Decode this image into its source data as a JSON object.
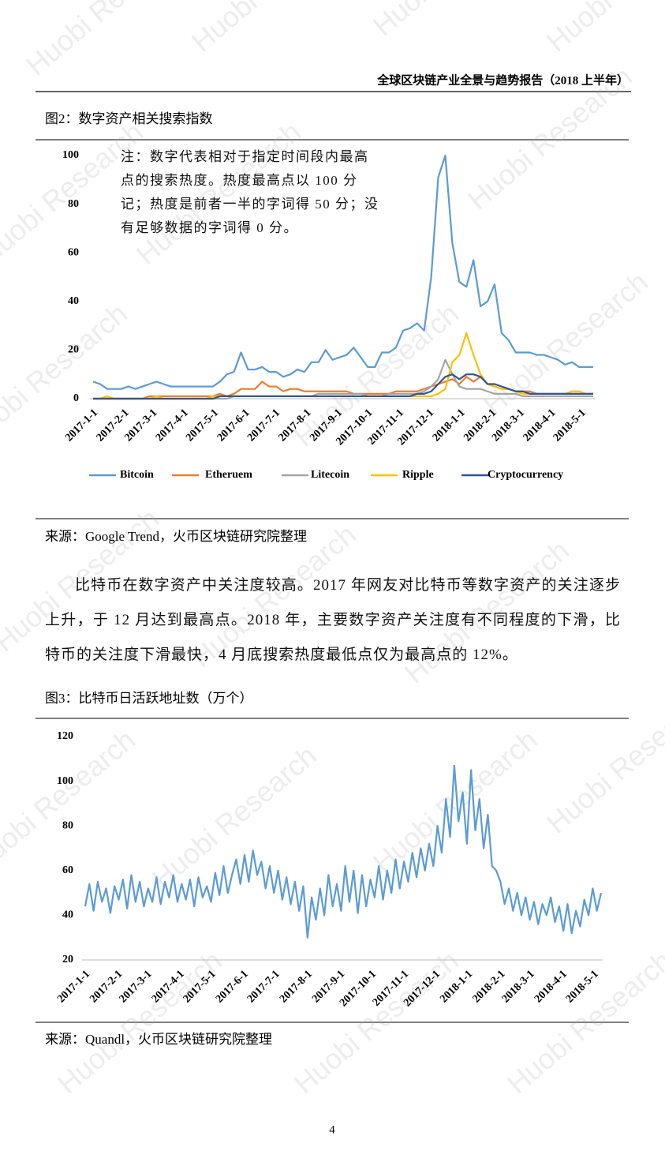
{
  "header": "全球区块链产业全景与趋势报告（2018 上半年）",
  "watermark": "Huobi Research",
  "paragraph": "比特币在数字资产中关注度较高。2017 年网友对比特币等数字资产的关注逐步上升，于 12 月达到最高点。2018 年，主要数字资产关注度有不同程度的下滑，比特币的关注度下滑最快，4 月底搜索热度最低点仅为最高点的 12%。",
  "page_number": "4",
  "chart_data": [
    {
      "type": "line",
      "title": "图2：数字资产相关搜索指数",
      "annotation": "注：数字代表相对于指定时间段内最高点的搜索热度。热度最高点以 100 分记；热度是前者一半的字词得 50 分；没有足够数据的字词得 0 分。",
      "source": "来源：Google Trend，火币区块链研究院整理",
      "x": [
        "2017-1-1",
        "2017-1-8",
        "2017-1-15",
        "2017-1-22",
        "2017-1-29",
        "2017-2-5",
        "2017-2-12",
        "2017-2-19",
        "2017-2-26",
        "2017-3-5",
        "2017-3-12",
        "2017-3-19",
        "2017-3-26",
        "2017-4-2",
        "2017-4-9",
        "2017-4-16",
        "2017-4-23",
        "2017-4-30",
        "2017-5-7",
        "2017-5-14",
        "2017-5-21",
        "2017-5-28",
        "2017-6-4",
        "2017-6-11",
        "2017-6-18",
        "2017-6-25",
        "2017-7-2",
        "2017-7-9",
        "2017-7-16",
        "2017-7-23",
        "2017-7-30",
        "2017-8-6",
        "2017-8-13",
        "2017-8-20",
        "2017-8-27",
        "2017-9-3",
        "2017-9-10",
        "2017-9-17",
        "2017-9-24",
        "2017-10-1",
        "2017-10-8",
        "2017-10-15",
        "2017-10-22",
        "2017-10-29",
        "2017-11-5",
        "2017-11-12",
        "2017-11-19",
        "2017-11-26",
        "2017-12-3",
        "2017-12-10",
        "2017-12-17",
        "2017-12-24",
        "2017-12-31",
        "2018-1-7",
        "2018-1-14",
        "2018-1-21",
        "2018-1-28",
        "2018-2-4",
        "2018-2-11",
        "2018-2-18",
        "2018-2-25",
        "2018-3-4",
        "2018-3-11",
        "2018-3-18",
        "2018-3-25",
        "2018-4-1",
        "2018-4-8",
        "2018-4-15",
        "2018-4-22",
        "2018-4-29",
        "2018-5-6",
        "2018-5-13"
      ],
      "xlim": [
        "2017-1-1",
        "2018-5-13"
      ],
      "xticks": [
        "2017-1-1",
        "2017-2-1",
        "2017-3-1",
        "2017-4-1",
        "2017-5-1",
        "2017-6-1",
        "2017-7-1",
        "2017-8-1",
        "2017-9-1",
        "2017-10-1",
        "2017-11-1",
        "2017-12-1",
        "2018-1-1",
        "2018-2-1",
        "2018-3-1",
        "2018-4-1",
        "2018-5-1"
      ],
      "ylim": [
        0,
        100
      ],
      "yticks": [
        0,
        20,
        40,
        60,
        80,
        100
      ],
      "grid": false,
      "series": [
        {
          "name": "Bitcoin",
          "color": "#5b9bd5",
          "values": [
            7,
            6,
            4,
            4,
            4,
            5,
            4,
            5,
            6,
            7,
            6,
            5,
            5,
            5,
            5,
            5,
            5,
            5,
            7,
            10,
            11,
            19,
            12,
            12,
            13,
            11,
            11,
            9,
            10,
            12,
            11,
            15,
            15,
            20,
            16,
            17,
            18,
            21,
            17,
            13,
            13,
            19,
            19,
            21,
            28,
            29,
            31,
            28,
            50,
            91,
            100,
            64,
            48,
            46,
            57,
            38,
            40,
            47,
            27,
            24,
            19,
            19,
            19,
            18,
            18,
            17,
            16,
            14,
            15,
            13,
            13,
            13
          ]
        },
        {
          "name": "Etheruem",
          "color": "#ed7d31",
          "values": [
            0,
            0,
            0,
            0,
            0,
            0,
            0,
            0,
            1,
            1,
            1,
            1,
            1,
            1,
            1,
            1,
            1,
            1,
            2,
            1,
            2,
            4,
            4,
            4,
            7,
            5,
            5,
            3,
            4,
            4,
            3,
            3,
            3,
            3,
            3,
            3,
            3,
            2,
            2,
            2,
            2,
            2,
            2,
            3,
            3,
            3,
            3,
            4,
            5,
            6,
            7,
            8,
            6,
            9,
            7,
            9,
            6,
            5,
            4,
            4,
            3,
            3,
            3,
            2,
            2,
            2,
            2,
            2,
            2,
            2,
            2,
            2
          ]
        },
        {
          "name": "Litecoin",
          "color": "#a5a5a5",
          "values": [
            0,
            0,
            0,
            0,
            0,
            0,
            0,
            0,
            0,
            0,
            0,
            0,
            0,
            0,
            0,
            0,
            0,
            0,
            0,
            0,
            1,
            1,
            1,
            1,
            1,
            1,
            1,
            1,
            1,
            1,
            1,
            1,
            2,
            2,
            2,
            2,
            2,
            2,
            2,
            1,
            1,
            1,
            2,
            2,
            2,
            2,
            2,
            3,
            5,
            8,
            16,
            10,
            5,
            4,
            4,
            4,
            3,
            2,
            2,
            2,
            2,
            1,
            1,
            1,
            1,
            1,
            1,
            1,
            1,
            1,
            1,
            1
          ]
        },
        {
          "name": "Ripple",
          "color": "#ffc000",
          "values": [
            0,
            0,
            1,
            0,
            0,
            0,
            0,
            0,
            0,
            1,
            0,
            0,
            0,
            0,
            0,
            0,
            0,
            1,
            1,
            1,
            1,
            1,
            1,
            1,
            1,
            1,
            1,
            1,
            1,
            1,
            1,
            1,
            1,
            1,
            1,
            1,
            1,
            1,
            1,
            1,
            1,
            1,
            1,
            1,
            1,
            1,
            1,
            1,
            1,
            2,
            4,
            15,
            18,
            27,
            18,
            10,
            6,
            5,
            4,
            4,
            3,
            2,
            2,
            2,
            2,
            2,
            2,
            2,
            3,
            3,
            2,
            2
          ]
        },
        {
          "name": "Cryptocurrency",
          "color": "#2f5597",
          "values": [
            0,
            0,
            0,
            0,
            0,
            0,
            0,
            0,
            0,
            0,
            0,
            0,
            0,
            0,
            0,
            0,
            0,
            0,
            1,
            1,
            1,
            1,
            1,
            1,
            1,
            1,
            1,
            1,
            1,
            1,
            1,
            1,
            1,
            1,
            1,
            1,
            1,
            1,
            1,
            1,
            1,
            1,
            1,
            1,
            1,
            1,
            2,
            2,
            3,
            6,
            9,
            10,
            8,
            10,
            10,
            9,
            6,
            6,
            5,
            4,
            3,
            3,
            2,
            2,
            2,
            2,
            2,
            2,
            2,
            2,
            2,
            2
          ]
        }
      ]
    },
    {
      "type": "line",
      "title": "图3：比特币日活跃地址数（万个）",
      "source": "来源：Quandl，火币区块链研究院整理",
      "x": [
        "2017-1-1",
        "2017-1-5",
        "2017-1-9",
        "2017-1-13",
        "2017-1-17",
        "2017-1-21",
        "2017-1-25",
        "2017-1-29",
        "2017-2-2",
        "2017-2-6",
        "2017-2-10",
        "2017-2-14",
        "2017-2-18",
        "2017-2-22",
        "2017-2-26",
        "2017-3-2",
        "2017-3-6",
        "2017-3-10",
        "2017-3-14",
        "2017-3-18",
        "2017-3-22",
        "2017-3-26",
        "2017-3-30",
        "2017-4-3",
        "2017-4-7",
        "2017-4-11",
        "2017-4-15",
        "2017-4-19",
        "2017-4-23",
        "2017-4-27",
        "2017-5-1",
        "2017-5-5",
        "2017-5-9",
        "2017-5-13",
        "2017-5-17",
        "2017-5-21",
        "2017-5-25",
        "2017-5-29",
        "2017-6-2",
        "2017-6-6",
        "2017-6-10",
        "2017-6-14",
        "2017-6-18",
        "2017-6-22",
        "2017-6-26",
        "2017-6-30",
        "2017-7-4",
        "2017-7-8",
        "2017-7-12",
        "2017-7-16",
        "2017-7-20",
        "2017-7-24",
        "2017-7-28",
        "2017-8-1",
        "2017-8-5",
        "2017-8-9",
        "2017-8-13",
        "2017-8-17",
        "2017-8-21",
        "2017-8-25",
        "2017-8-29",
        "2017-9-2",
        "2017-9-6",
        "2017-9-10",
        "2017-9-14",
        "2017-9-18",
        "2017-9-22",
        "2017-9-26",
        "2017-9-30",
        "2017-10-4",
        "2017-10-8",
        "2017-10-12",
        "2017-10-16",
        "2017-10-20",
        "2017-10-24",
        "2017-10-28",
        "2017-11-1",
        "2017-11-5",
        "2017-11-9",
        "2017-11-13",
        "2017-11-17",
        "2017-11-21",
        "2017-11-25",
        "2017-11-29",
        "2017-12-3",
        "2017-12-7",
        "2017-12-11",
        "2017-12-15",
        "2017-12-19",
        "2017-12-23",
        "2017-12-27",
        "2017-12-31",
        "2018-1-4",
        "2018-1-8",
        "2018-1-12",
        "2018-1-16",
        "2018-1-20",
        "2018-1-24",
        "2018-1-28",
        "2018-2-1",
        "2018-2-5",
        "2018-2-9",
        "2018-2-13",
        "2018-2-17",
        "2018-2-21",
        "2018-2-25",
        "2018-3-1",
        "2018-3-5",
        "2018-3-9",
        "2018-3-13",
        "2018-3-17",
        "2018-3-21",
        "2018-3-25",
        "2018-3-29",
        "2018-4-2",
        "2018-4-6",
        "2018-4-10",
        "2018-4-14",
        "2018-4-18",
        "2018-4-22",
        "2018-4-26",
        "2018-4-30",
        "2018-5-4",
        "2018-5-8"
      ],
      "xlim": [
        "2017-1-1",
        "2018-5-8"
      ],
      "xticks": [
        "2017-1-1",
        "2017-2-1",
        "2017-3-1",
        "2017-4-1",
        "2017-5-1",
        "2017-6-1",
        "2017-7-1",
        "2017-8-1",
        "2017-9-1",
        "2017-10-1",
        "2017-11-1",
        "2017-12-1",
        "2018-1-1",
        "2018-2-1",
        "2018-3-1",
        "2018-4-1",
        "2018-5-1"
      ],
      "ylim": [
        20,
        120
      ],
      "yticks": [
        20,
        40,
        60,
        80,
        100,
        120
      ],
      "grid": false,
      "series": [
        {
          "name": null,
          "color": "#5b9bd5",
          "values": [
            44,
            54,
            42,
            55,
            46,
            52,
            41,
            53,
            47,
            56,
            43,
            58,
            46,
            55,
            44,
            52,
            46,
            57,
            45,
            55,
            48,
            58,
            46,
            54,
            47,
            56,
            44,
            57,
            48,
            53,
            46,
            59,
            49,
            62,
            50,
            58,
            65,
            54,
            67,
            55,
            69,
            58,
            64,
            52,
            62,
            50,
            60,
            47,
            57,
            45,
            55,
            42,
            53,
            30,
            48,
            38,
            52,
            40,
            58,
            44,
            54,
            42,
            62,
            46,
            60,
            41,
            58,
            44,
            56,
            48,
            62,
            47,
            60,
            50,
            65,
            52,
            64,
            55,
            68,
            57,
            70,
            60,
            72,
            62,
            80,
            68,
            92,
            75,
            107,
            82,
            95,
            72,
            105,
            78,
            92,
            70,
            85,
            62,
            60,
            55,
            45,
            52,
            42,
            50,
            40,
            48,
            38,
            46,
            36,
            45,
            40,
            48,
            37,
            44,
            33,
            45,
            32,
            42,
            35,
            47,
            40,
            52,
            42,
            50
          ]
        }
      ]
    }
  ]
}
